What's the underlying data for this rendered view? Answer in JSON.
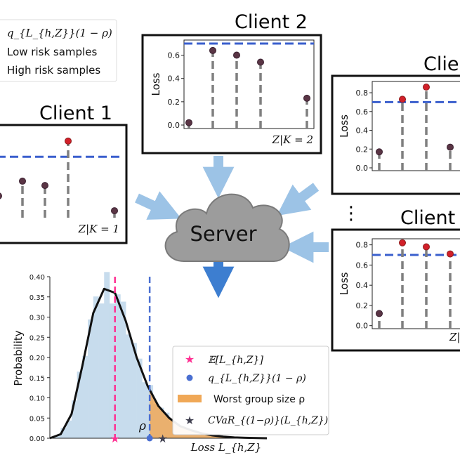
{
  "top_legend": {
    "items": [
      "q_{L_{h,Z}}(1 − ρ)",
      "Low risk samples",
      "High risk samples"
    ]
  },
  "clients": [
    {
      "title": "Client 1",
      "group_label": "Z|K = 1",
      "ylabel": "",
      "yticks": [],
      "chart_data": {
        "type": "stem",
        "threshold": 0.7,
        "values": [
          0.25,
          0.42,
          0.37,
          0.88,
          0.08
        ],
        "ylim": [
          0,
          1.0
        ]
      }
    },
    {
      "title": "Client 2",
      "group_label": "Z|K = 2",
      "ylabel": "Loss",
      "yticks": [
        "0.0",
        "0.2",
        "0.4",
        "0.6"
      ],
      "chart_data": {
        "type": "stem",
        "threshold": 0.7,
        "values": [
          0.02,
          0.64,
          0.6,
          0.54,
          0.23
        ],
        "ylim": [
          -0.03,
          0.73
        ]
      }
    },
    {
      "title": "Clie",
      "group_label": "",
      "ylabel": "Loss",
      "yticks": [
        "0.0",
        "0.2",
        "0.4",
        "0.6",
        "0.8"
      ],
      "chart_data": {
        "type": "stem",
        "threshold": 0.7,
        "values": [
          0.17,
          0.73,
          0.86,
          0.22
        ],
        "ylim": [
          -0.03,
          0.92
        ]
      }
    },
    {
      "title": "Client",
      "group_label": "Z|",
      "ylabel": "Loss",
      "yticks": [
        "0.0",
        "0.2",
        "0.4",
        "0.6",
        "0.8"
      ],
      "chart_data": {
        "type": "stem",
        "threshold": 0.7,
        "values": [
          0.12,
          0.82,
          0.78,
          0.71
        ],
        "ylim": [
          -0.03,
          0.86
        ]
      }
    }
  ],
  "ellipsis": "⋮",
  "server": {
    "label": "Server"
  },
  "distribution": {
    "ylabel": "Probability",
    "xlabel": "Loss L_{h,Z}",
    "yticks": [
      "0.00",
      "0.05",
      "0.10",
      "0.15",
      "0.20",
      "0.25",
      "0.30",
      "0.35",
      "0.40"
    ],
    "rho_label": "ρ",
    "legend": [
      "𝔼[L_{h,Z}]",
      "q_{L_{h,Z}}(1 − ρ)",
      "Worst group size ρ",
      "CVaR_{(1−ρ)}(L_{h,Z})"
    ],
    "chart_data": {
      "type": "area",
      "ylim": [
        0,
        0.4
      ],
      "curve": [
        [
          0.0,
          0.0
        ],
        [
          0.05,
          0.01
        ],
        [
          0.1,
          0.06
        ],
        [
          0.15,
          0.18
        ],
        [
          0.2,
          0.31
        ],
        [
          0.25,
          0.37
        ],
        [
          0.3,
          0.36
        ],
        [
          0.35,
          0.29
        ],
        [
          0.4,
          0.2
        ],
        [
          0.45,
          0.13
        ],
        [
          0.5,
          0.08
        ],
        [
          0.55,
          0.05
        ],
        [
          0.6,
          0.03
        ],
        [
          0.65,
          0.02
        ],
        [
          0.7,
          0.012
        ],
        [
          0.75,
          0.007
        ],
        [
          0.8,
          0.004
        ],
        [
          0.85,
          0.002
        ],
        [
          0.9,
          0.001
        ],
        [
          1.0,
          0.0
        ]
      ],
      "mean": 0.3,
      "quantile": 0.46,
      "cvar": 0.52
    }
  },
  "colors": {
    "threshold": "#3a5fcd",
    "stem": "#7f7f7f",
    "point_low": "#5a3545",
    "point_high": "#d2202a",
    "arrow": "#9cc3e6",
    "arrow_down": "#3d7ed0",
    "cloud": "#9c9c9c",
    "mean": "#ff2f92",
    "tail": "#f0a857",
    "hist": "#c7dced",
    "star": "#404050"
  }
}
